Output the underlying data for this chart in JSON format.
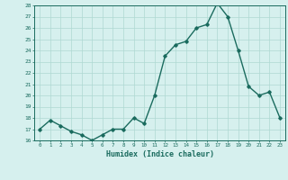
{
  "x": [
    0,
    1,
    2,
    3,
    4,
    5,
    6,
    7,
    8,
    9,
    10,
    11,
    12,
    13,
    14,
    15,
    16,
    17,
    18,
    19,
    20,
    21,
    22,
    23
  ],
  "y": [
    17,
    17.8,
    17.3,
    16.8,
    16.5,
    16.0,
    16.5,
    17.0,
    17.0,
    18.0,
    17.5,
    20.0,
    23.5,
    24.5,
    24.8,
    26.0,
    26.3,
    28.2,
    27.0,
    24.0,
    20.8,
    20.0,
    20.3,
    18.0
  ],
  "xlabel": "Humidex (Indice chaleur)",
  "ylim": [
    16,
    28
  ],
  "xlim": [
    -0.5,
    23.5
  ],
  "yticks": [
    16,
    17,
    18,
    19,
    20,
    21,
    22,
    23,
    24,
    25,
    26,
    27,
    28
  ],
  "xticks": [
    0,
    1,
    2,
    3,
    4,
    5,
    6,
    7,
    8,
    9,
    10,
    11,
    12,
    13,
    14,
    15,
    16,
    17,
    18,
    19,
    20,
    21,
    22,
    23
  ],
  "line_color": "#1a6b5e",
  "bg_color": "#d6f0ee",
  "grid_color": "#aed8d2",
  "text_color": "#1a6b5e",
  "marker": "D",
  "marker_size": 1.8,
  "line_width": 1.0
}
